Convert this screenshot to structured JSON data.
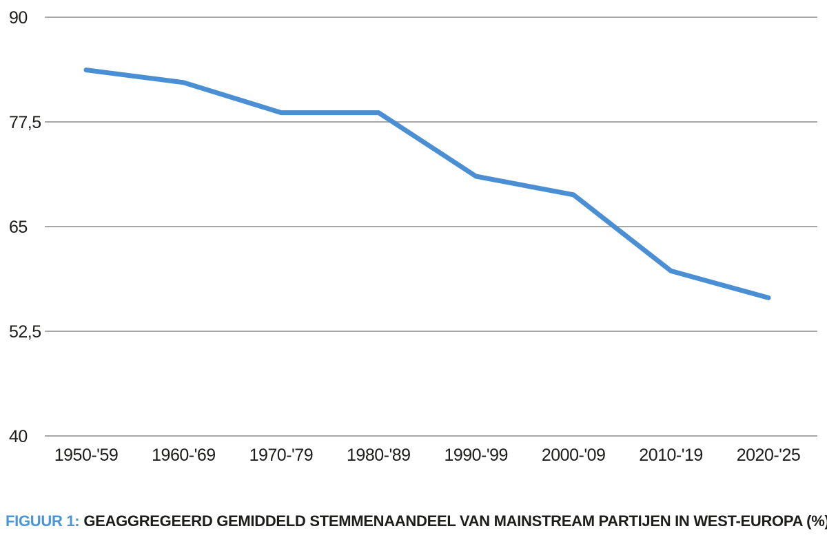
{
  "chart_data": {
    "type": "line",
    "categories": [
      "1950-'59",
      "1960-'69",
      "1970-'79",
      "1980-'89",
      "1990-'99",
      "2000-'09",
      "2010-'19",
      "2020-'25"
    ],
    "values": [
      83.7,
      82.2,
      78.6,
      78.6,
      71.0,
      68.8,
      59.7,
      56.5
    ],
    "series_name": "Geaggregeerd gemiddeld stemmenaandeel van mainstream partijen in West-Europa (%)",
    "title": "",
    "xlabel": "",
    "ylabel": "",
    "ylim": [
      40,
      90
    ],
    "yticks": [
      {
        "value": 90,
        "label": "90"
      },
      {
        "value": 77.5,
        "label": "77,5"
      },
      {
        "value": 65,
        "label": "65"
      },
      {
        "value": 52.5,
        "label": "52,5"
      },
      {
        "value": 40,
        "label": "40"
      }
    ],
    "grid": true,
    "legend": "none",
    "line_color": "#4a8fd3",
    "gridline_color": "#a6a6a6",
    "tick_text_color": "#1d1d1b"
  },
  "caption": {
    "label": "FIGUUR 1:",
    "text": "GEAGGREGEERD GEMIDDELD STEMMENAANDEEL VAN MAINSTREAM PARTIJEN IN WEST-EUROPA (%)",
    "label_color": "#4a95d8",
    "text_color": "#1d1d1b"
  }
}
